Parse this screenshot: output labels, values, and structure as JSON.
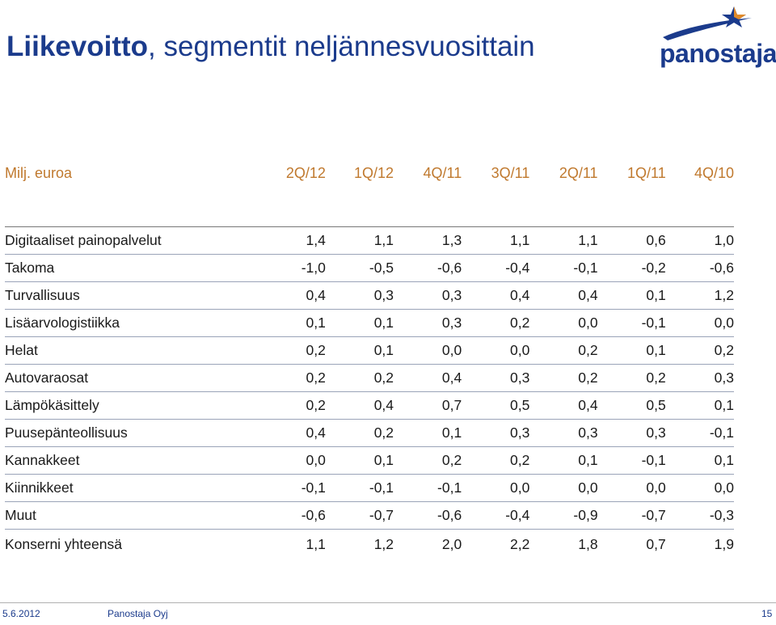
{
  "header": {
    "title_bold": "Liikevoitto",
    "title_rest": ", segmentit neljännesvuosittain",
    "logo_text": "panostaja",
    "logo_icon": "star-swoosh-icon",
    "brand_color": "#1b3b8c",
    "accent_color": "#c0792e"
  },
  "table": {
    "unit_label": "Milj. euroa",
    "columns": [
      "2Q/12",
      "1Q/12",
      "4Q/11",
      "3Q/11",
      "2Q/11",
      "1Q/11",
      "4Q/10"
    ],
    "rows": [
      {
        "label": "Digitaaliset painopalvelut",
        "values": [
          "1,4",
          "1,1",
          "1,3",
          "1,1",
          "1,1",
          "0,6",
          "1,0"
        ]
      },
      {
        "label": "Takoma",
        "values": [
          "-1,0",
          "-0,5",
          "-0,6",
          "-0,4",
          "-0,1",
          "-0,2",
          "-0,6"
        ]
      },
      {
        "label": "Turvallisuus",
        "values": [
          "0,4",
          "0,3",
          "0,3",
          "0,4",
          "0,4",
          "0,1",
          "1,2"
        ]
      },
      {
        "label": "Lisäarvologistiikka",
        "values": [
          "0,1",
          "0,1",
          "0,3",
          "0,2",
          "0,0",
          "-0,1",
          "0,0"
        ]
      },
      {
        "label": "Helat",
        "values": [
          "0,2",
          "0,1",
          "0,0",
          "0,0",
          "0,2",
          "0,1",
          "0,2"
        ]
      },
      {
        "label": "Autovaraosat",
        "values": [
          "0,2",
          "0,2",
          "0,4",
          "0,3",
          "0,2",
          "0,2",
          "0,3"
        ]
      },
      {
        "label": "Lämpökäsittely",
        "values": [
          "0,2",
          "0,4",
          "0,7",
          "0,5",
          "0,4",
          "0,5",
          "0,1"
        ]
      },
      {
        "label": "Puusepänteollisuus",
        "values": [
          "0,4",
          "0,2",
          "0,1",
          "0,3",
          "0,3",
          "0,3",
          "-0,1"
        ]
      },
      {
        "label": "Kannakkeet",
        "values": [
          "0,0",
          "0,1",
          "0,2",
          "0,2",
          "0,1",
          "-0,1",
          "0,1"
        ]
      },
      {
        "label": "Kiinnikkeet",
        "values": [
          "-0,1",
          "-0,1",
          "-0,1",
          "0,0",
          "0,0",
          "0,0",
          "0,0"
        ]
      },
      {
        "label": "Muut",
        "values": [
          "-0,6",
          "-0,7",
          "-0,6",
          "-0,4",
          "-0,9",
          "-0,7",
          "-0,3"
        ]
      },
      {
        "label": "Konserni  yhteensä",
        "values": [
          "1,1",
          "1,2",
          "2,0",
          "2,2",
          "1,8",
          "0,7",
          "1,9"
        ]
      }
    ]
  },
  "footer": {
    "date": "5.6.2012",
    "company": "Panostaja Oyj",
    "page_number": "15"
  }
}
